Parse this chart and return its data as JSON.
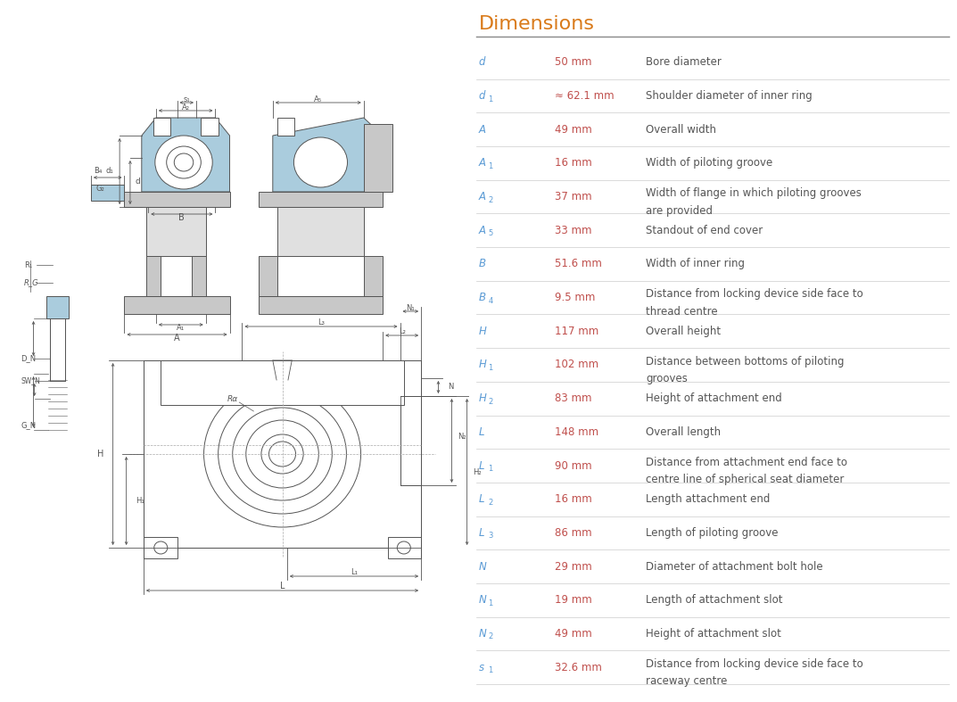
{
  "title": "Dimensions",
  "title_color": "#d97a1a",
  "title_fontsize": 16,
  "bg_color": "#ffffff",
  "table_header_line_color": "#888888",
  "row_line_color": "#cccccc",
  "col_symbol_color": "#5b9bd5",
  "col_value_color": "#c0504d",
  "col_desc_color": "#555555",
  "rows": [
    {
      "symbol": "d",
      "sub": "",
      "value": "50 mm",
      "desc": "Bore diameter"
    },
    {
      "symbol": "d",
      "sub": "1",
      "value": "≈ 62.1 mm",
      "desc": "Shoulder diameter of inner ring"
    },
    {
      "symbol": "A",
      "sub": "",
      "value": "49 mm",
      "desc": "Overall width"
    },
    {
      "symbol": "A",
      "sub": "1",
      "value": "16 mm",
      "desc": "Width of piloting groove"
    },
    {
      "symbol": "A",
      "sub": "2",
      "value": "37 mm",
      "desc": "Width of flange in which piloting grooves are provided"
    },
    {
      "symbol": "A",
      "sub": "5",
      "value": "33 mm",
      "desc": "Standout of end cover"
    },
    {
      "symbol": "B",
      "sub": "",
      "value": "51.6 mm",
      "desc": "Width of inner ring"
    },
    {
      "symbol": "B",
      "sub": "4",
      "value": "9.5 mm",
      "desc": "Distance from locking device side face to thread centre"
    },
    {
      "symbol": "H",
      "sub": "",
      "value": "117 mm",
      "desc": "Overall height"
    },
    {
      "symbol": "H",
      "sub": "1",
      "value": "102 mm",
      "desc": "Distance between bottoms of piloting grooves"
    },
    {
      "symbol": "H",
      "sub": "2",
      "value": "83 mm",
      "desc": "Height of attachment end"
    },
    {
      "symbol": "L",
      "sub": "",
      "value": "148 mm",
      "desc": "Overall length"
    },
    {
      "symbol": "L",
      "sub": "1",
      "value": "90 mm",
      "desc": "Distance from attachment end face to centre line of spherical seat diameter"
    },
    {
      "symbol": "L",
      "sub": "2",
      "value": "16 mm",
      "desc": "Length attachment end"
    },
    {
      "symbol": "L",
      "sub": "3",
      "value": "86 mm",
      "desc": "Length of piloting groove"
    },
    {
      "symbol": "N",
      "sub": "",
      "value": "29 mm",
      "desc": "Diameter of attachment bolt hole"
    },
    {
      "symbol": "N",
      "sub": "1",
      "value": "19 mm",
      "desc": "Length of attachment slot"
    },
    {
      "symbol": "N",
      "sub": "2",
      "value": "49 mm",
      "desc": "Height of attachment slot"
    },
    {
      "symbol": "s",
      "sub": "1",
      "value": "32.6 mm",
      "desc": "Distance from locking device side face to raceway centre"
    }
  ],
  "blue": "#aaccdd",
  "blue2": "#bed8e8",
  "gray": "#c8c8c8",
  "gray2": "#e0e0e0",
  "lc": "#555555",
  "dc": "#555555",
  "wh": "#ffffff"
}
